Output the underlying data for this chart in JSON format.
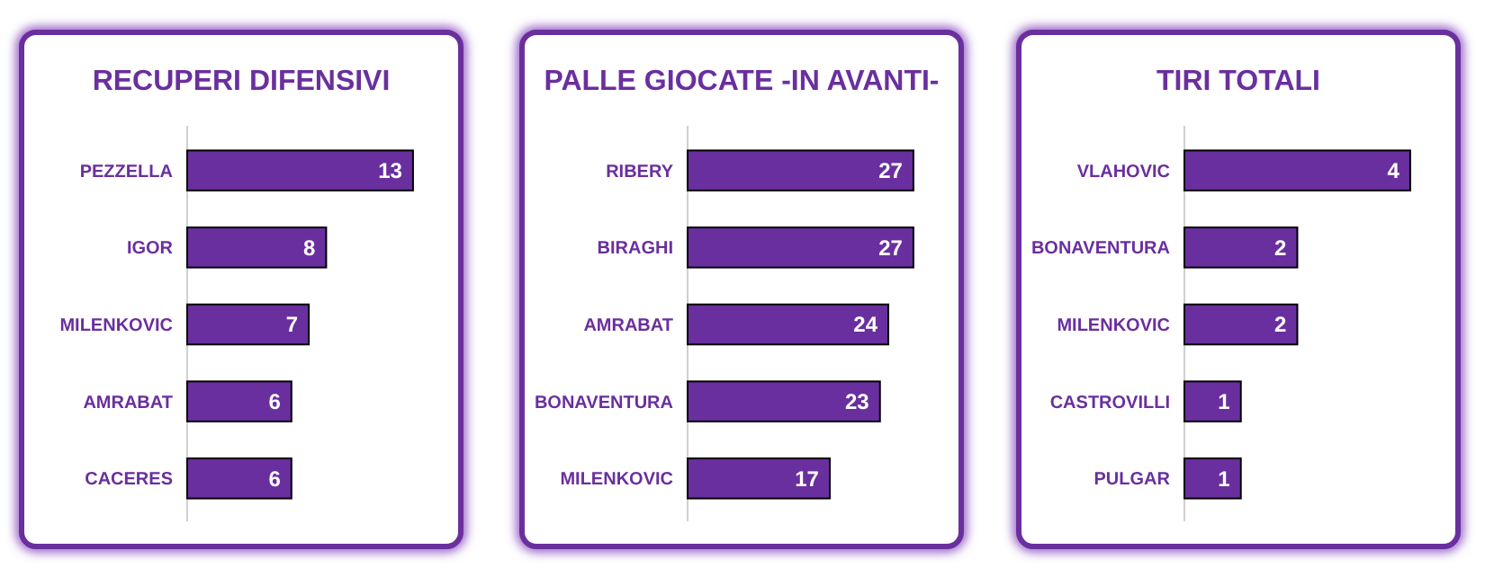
{
  "chart_data": [
    {
      "type": "bar",
      "orientation": "horizontal",
      "title": "RECUPERI DIFENSIVI",
      "categories": [
        "PEZZELLA",
        "IGOR",
        "MILENKOVIC",
        "AMRABAT",
        "CACERES"
      ],
      "values": [
        13,
        8,
        7,
        6,
        6
      ],
      "color": "#6a2f9e",
      "data_labels": true
    },
    {
      "type": "bar",
      "orientation": "horizontal",
      "title": "PALLE GIOCATE -IN AVANTI-",
      "categories": [
        "RIBERY",
        "BIRAGHI",
        "AMRABAT",
        "BONAVENTURA",
        "MILENKOVIC"
      ],
      "values": [
        27,
        27,
        24,
        23,
        17
      ],
      "color": "#6a2f9e",
      "data_labels": true
    },
    {
      "type": "bar",
      "orientation": "horizontal",
      "title": "TIRI TOTALI",
      "categories": [
        "VLAHOVIC",
        "BONAVENTURA",
        "MILENKOVIC",
        "CASTROVILLI",
        "PULGAR"
      ],
      "values": [
        4,
        2,
        2,
        1,
        1
      ],
      "color": "#6a2f9e",
      "data_labels": true
    }
  ]
}
